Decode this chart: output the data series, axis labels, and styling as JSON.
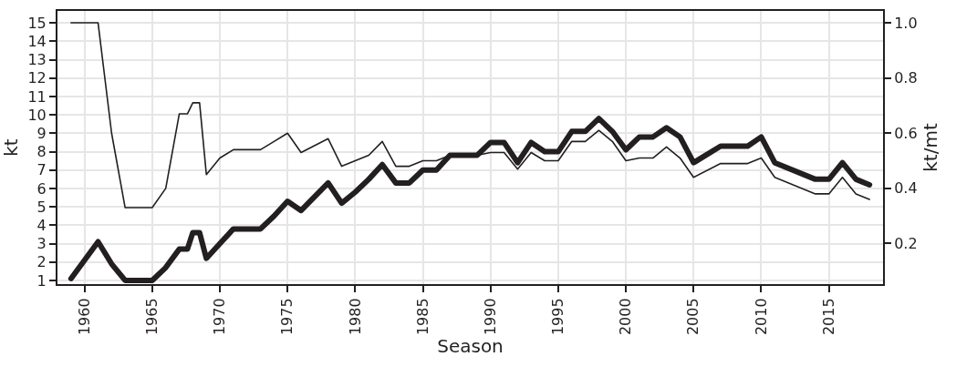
{
  "chart_data": {
    "type": "line",
    "xlabel": "Season",
    "ylabel": "kt",
    "y2label": "kt/mt",
    "xlim": [
      1958,
      2019
    ],
    "xticks": [
      1960,
      1965,
      1970,
      1975,
      1980,
      1985,
      1990,
      1995,
      2000,
      2005,
      2010,
      2015
    ],
    "ylim": [
      0.8,
      15.65
    ],
    "yticks": [
      1,
      2,
      3,
      4,
      5,
      6,
      7,
      8,
      9,
      10,
      11,
      12,
      13,
      14,
      15
    ],
    "y2lim": [
      0.053,
      1.043
    ],
    "y2ticks": [
      0.2,
      0.4,
      0.6,
      0.8,
      {
        "value": 1.0,
        "label": "1.0"
      }
    ],
    "grid": true,
    "marker": "none",
    "line_style": "solid",
    "series": [
      {
        "color": "#231f20",
        "x": [
          1959,
          1961,
          1962,
          1963,
          1965,
          1966,
          1967,
          1967.6,
          1968,
          1968.5,
          1969,
          1970,
          1971,
          1973,
          1974,
          1975,
          1976,
          1978,
          1979,
          1980,
          1981,
          1982,
          1983,
          1984,
          1985,
          1986,
          1987,
          1989,
          1990,
          1991,
          1992,
          1993,
          1994,
          1995,
          1996,
          1997,
          1998,
          1999,
          2000,
          2001,
          2002,
          2003,
          2004,
          2005,
          2007,
          2009,
          2010,
          2011,
          2014,
          2015,
          2016,
          2017,
          2018
        ],
        "values": [
          1.1,
          3.1,
          1.9,
          1.0,
          1.0,
          1.7,
          2.7,
          2.7,
          3.6,
          3.6,
          2.2,
          3.0,
          3.8,
          3.8,
          4.5,
          5.3,
          4.8,
          6.3,
          5.2,
          5.8,
          6.5,
          7.3,
          6.3,
          6.3,
          7.0,
          7.0,
          7.8,
          7.8,
          8.5,
          8.5,
          7.4,
          8.5,
          8.0,
          8.0,
          9.1,
          9.1,
          9.8,
          9.1,
          8.1,
          8.8,
          8.8,
          9.3,
          8.8,
          7.4,
          8.3,
          8.3,
          8.8,
          7.4,
          6.5,
          6.5,
          7.4,
          6.5,
          6.2
        ]
      },
      {
        "color": "#231f20",
        "axis": "y2",
        "x": [
          1959,
          1961,
          1962,
          1963,
          1965,
          1966,
          1967,
          1967.6,
          1968,
          1968.5,
          1969,
          1970,
          1971,
          1973,
          1974,
          1975,
          1976,
          1978,
          1979,
          1980,
          1981,
          1982,
          1983,
          1984,
          1985,
          1986,
          1987,
          1989,
          1990,
          1991,
          1992,
          1993,
          1994,
          1995,
          1996,
          1997,
          1998,
          1999,
          2000,
          2001,
          2002,
          2003,
          2004,
          2005,
          2007,
          2009,
          2010,
          2011,
          2014,
          2015,
          2016,
          2017,
          2018
        ],
        "values": [
          1.0,
          1.0,
          0.6,
          0.33,
          0.33,
          0.4,
          0.67,
          0.67,
          0.71,
          0.71,
          0.45,
          0.51,
          0.54,
          0.54,
          0.57,
          0.6,
          0.53,
          0.58,
          0.48,
          0.5,
          0.52,
          0.57,
          0.48,
          0.48,
          0.5,
          0.5,
          0.52,
          0.52,
          0.53,
          0.53,
          0.47,
          0.53,
          0.5,
          0.5,
          0.57,
          0.57,
          0.61,
          0.57,
          0.5,
          0.51,
          0.51,
          0.55,
          0.51,
          0.44,
          0.49,
          0.49,
          0.51,
          0.44,
          0.38,
          0.38,
          0.44,
          0.38,
          0.36
        ]
      }
    ]
  }
}
